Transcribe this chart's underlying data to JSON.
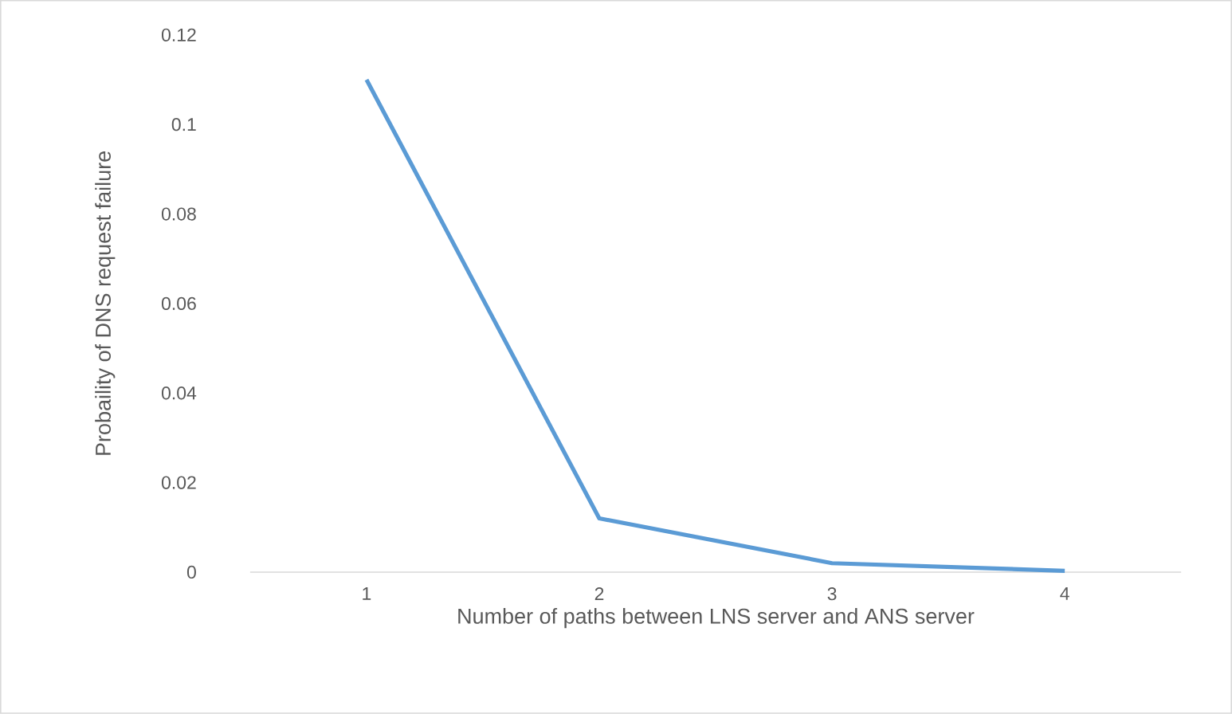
{
  "chart_data": {
    "type": "line",
    "xlabel": "Number of paths between LNS server and ANS server",
    "ylabel": "Probaility of DNS request failure",
    "categories": [
      "1",
      "2",
      "3",
      "4"
    ],
    "series": [
      {
        "color": "#5b9bd5",
        "values": [
          0.11,
          0.012,
          0.002,
          0.0003
        ]
      }
    ],
    "ylim": [
      0,
      0.12
    ],
    "yticks": [
      0,
      0.02,
      0.04,
      0.06,
      0.08,
      0.1,
      0.12
    ],
    "grid": false,
    "marker": "none",
    "line_style": "solid"
  }
}
